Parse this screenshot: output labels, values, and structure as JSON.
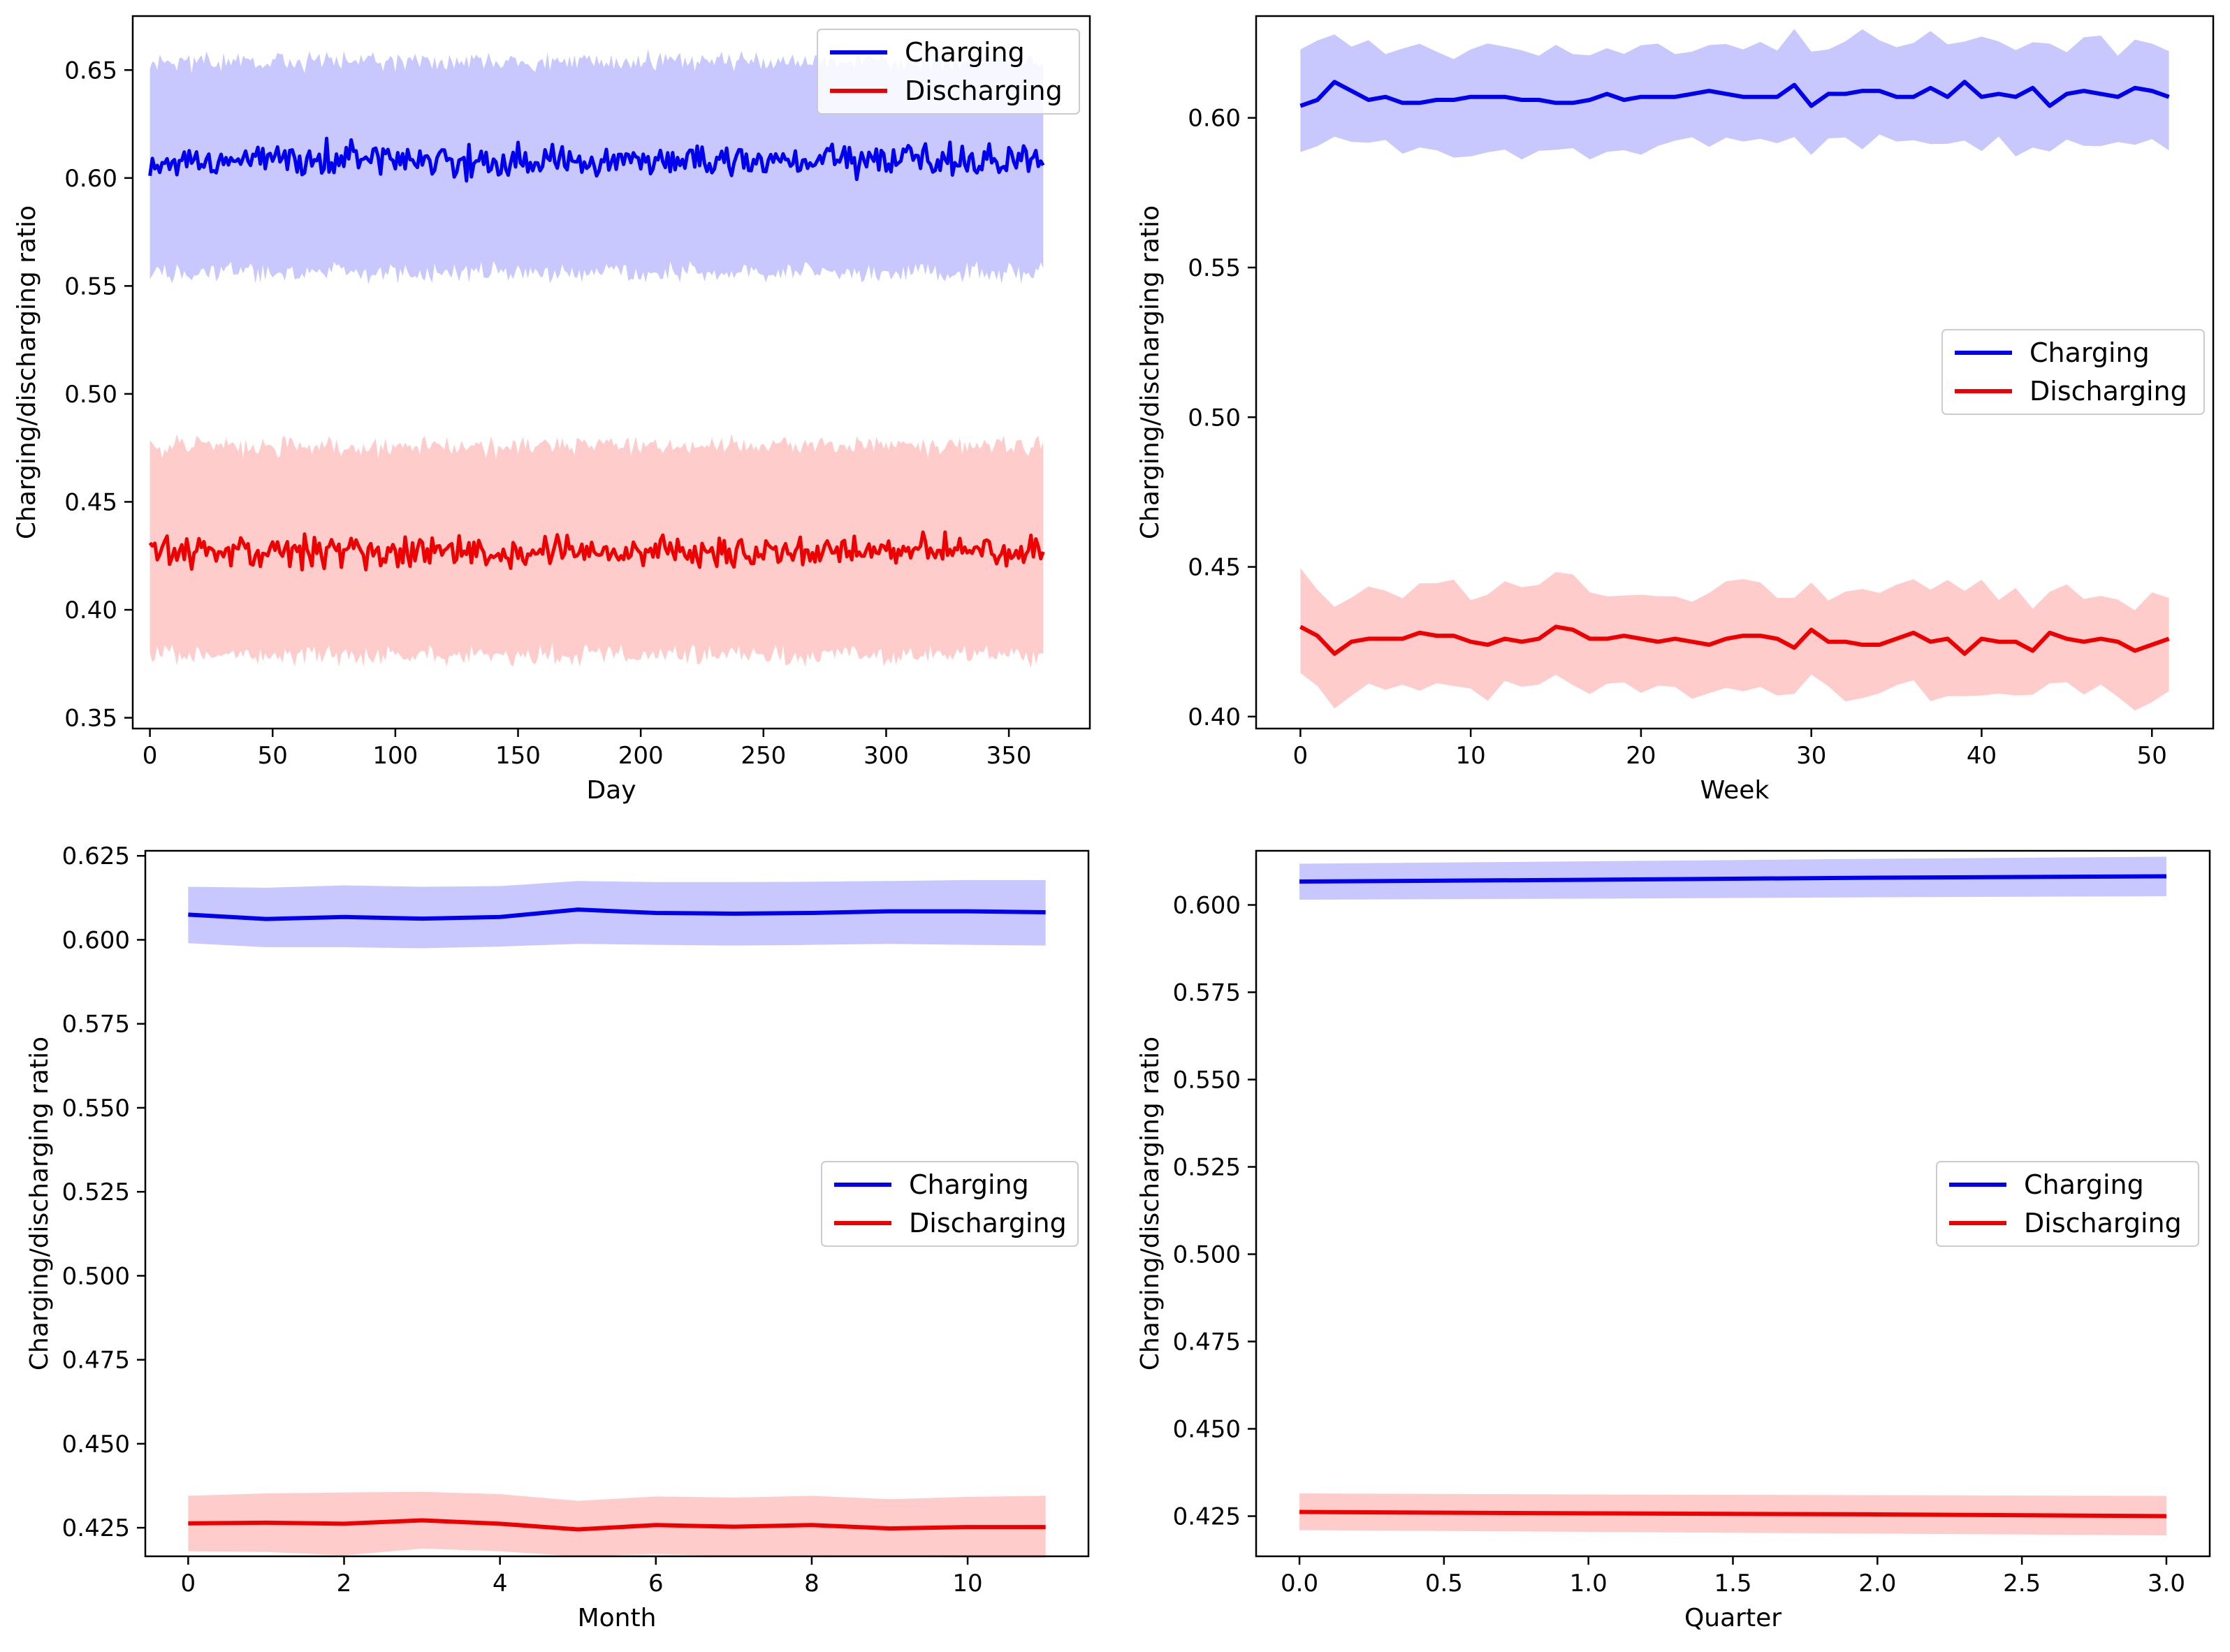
{
  "figure": {
    "ylabel": "Charging/discharging ratio"
  },
  "colors": {
    "charging": "#0000ee",
    "charging_band": "#c8c8ff",
    "discharging": "#ee0000",
    "discharging_band": "#ffcccc",
    "axis": "#000000"
  },
  "chart_data": [
    {
      "type": "line",
      "id": "daily",
      "x_count": 365,
      "x_step": 1,
      "xlabel": "Day",
      "ylabel": "Charging/discharging ratio",
      "xlim": [
        -7,
        383
      ],
      "ylim": [
        0.345,
        0.675
      ],
      "xticks": [
        0,
        50,
        100,
        150,
        200,
        250,
        300,
        350
      ],
      "xtick_labels": [
        "0",
        "50",
        "100",
        "150",
        "200",
        "250",
        "300",
        "350"
      ],
      "yticks": [
        0.35,
        0.4,
        0.45,
        0.5,
        0.55,
        0.6,
        0.65
      ],
      "ytick_labels": [
        "0.35",
        "0.40",
        "0.45",
        "0.50",
        "0.55",
        "0.60",
        "0.65"
      ],
      "legend": {
        "location": "upper right",
        "entries": [
          "Charging",
          "Discharging"
        ]
      },
      "series": [
        {
          "name": "Charging",
          "mean": 0.608,
          "jitter": 0.0045,
          "band_lower": 0.556,
          "band_upper": 0.654,
          "band_jitter": 0.006,
          "seed": 11,
          "start": 0.601
        },
        {
          "name": "Discharging",
          "mean": 0.427,
          "jitter": 0.0045,
          "band_lower": 0.379,
          "band_upper": 0.476,
          "band_jitter": 0.006,
          "seed": 29,
          "start": 0.431
        }
      ]
    },
    {
      "type": "line",
      "id": "weekly",
      "xlabel": "Week",
      "ylabel": "Charging/discharging ratio",
      "xlim": [
        -2.6,
        53.6
      ],
      "ylim": [
        0.396,
        0.634
      ],
      "xticks": [
        0,
        10,
        20,
        30,
        40,
        50
      ],
      "xtick_labels": [
        "0",
        "10",
        "20",
        "30",
        "40",
        "50"
      ],
      "yticks": [
        0.4,
        0.45,
        0.5,
        0.55,
        0.6
      ],
      "ytick_labels": [
        "0.40",
        "0.45",
        "0.50",
        "0.55",
        "0.60"
      ],
      "legend": {
        "location": "center right",
        "entries": [
          "Charging",
          "Discharging"
        ]
      },
      "series": [
        {
          "name": "Charging",
          "values": [
            0.604,
            0.606,
            0.612,
            0.609,
            0.606,
            0.607,
            0.605,
            0.605,
            0.606,
            0.606,
            0.607,
            0.607,
            0.607,
            0.606,
            0.606,
            0.605,
            0.605,
            0.606,
            0.608,
            0.606,
            0.607,
            0.607,
            0.607,
            0.608,
            0.609,
            0.608,
            0.607,
            0.607,
            0.607,
            0.611,
            0.604,
            0.608,
            0.608,
            0.609,
            0.609,
            0.607,
            0.607,
            0.61,
            0.607,
            0.612,
            0.607,
            0.608,
            0.607,
            0.61,
            0.604,
            0.608,
            0.609,
            0.608,
            0.607,
            0.61,
            0.609,
            0.607
          ],
          "band_offset": 0.017,
          "seed": 5
        },
        {
          "name": "Discharging",
          "values": [
            0.43,
            0.427,
            0.421,
            0.425,
            0.426,
            0.426,
            0.426,
            0.428,
            0.427,
            0.427,
            0.425,
            0.424,
            0.426,
            0.425,
            0.426,
            0.43,
            0.429,
            0.426,
            0.426,
            0.427,
            0.426,
            0.425,
            0.426,
            0.425,
            0.424,
            0.426,
            0.427,
            0.427,
            0.426,
            0.423,
            0.429,
            0.425,
            0.425,
            0.424,
            0.424,
            0.426,
            0.428,
            0.425,
            0.426,
            0.421,
            0.426,
            0.425,
            0.425,
            0.422,
            0.428,
            0.426,
            0.425,
            0.426,
            0.425,
            0.422,
            0.424,
            0.426
          ],
          "band_offset": 0.017,
          "seed": 17
        }
      ]
    },
    {
      "type": "line",
      "id": "monthly",
      "xlabel": "Month",
      "ylabel": "Charging/discharging ratio",
      "xlim": [
        -0.55,
        11.55
      ],
      "ylim": [
        0.4165,
        0.6265
      ],
      "xticks": [
        0,
        2,
        4,
        6,
        8,
        10
      ],
      "xtick_labels": [
        "0",
        "2",
        "4",
        "6",
        "8",
        "10"
      ],
      "yticks": [
        0.425,
        0.45,
        0.475,
        0.5,
        0.525,
        0.55,
        0.575,
        0.6,
        0.625
      ],
      "ytick_labels": [
        "0.425",
        "0.450",
        "0.475",
        "0.500",
        "0.525",
        "0.550",
        "0.575",
        "0.600",
        "0.625"
      ],
      "legend": {
        "location": "center right",
        "entries": [
          "Charging",
          "Discharging"
        ]
      },
      "series": [
        {
          "name": "Charging",
          "values": [
            0.6075,
            0.6062,
            0.6068,
            0.6063,
            0.6068,
            0.609,
            0.608,
            0.6078,
            0.608,
            0.6085,
            0.6085,
            0.6082
          ],
          "lower": [
            0.599,
            0.5978,
            0.5978,
            0.5975,
            0.598,
            0.5988,
            0.5985,
            0.5983,
            0.5985,
            0.5988,
            0.5985,
            0.5983
          ],
          "upper": [
            0.6158,
            0.6155,
            0.6162,
            0.6158,
            0.616,
            0.6175,
            0.6172,
            0.6172,
            0.6173,
            0.6175,
            0.6178,
            0.6178
          ]
        },
        {
          "name": "Discharging",
          "values": [
            0.4263,
            0.4265,
            0.4262,
            0.4272,
            0.4262,
            0.4245,
            0.4258,
            0.4253,
            0.4258,
            0.4248,
            0.4252,
            0.4252
          ],
          "lower": [
            0.418,
            0.4178,
            0.4168,
            0.4188,
            0.418,
            0.4165,
            0.4172,
            0.4165,
            0.4168,
            0.4165,
            0.416,
            0.416
          ],
          "upper": [
            0.4345,
            0.4352,
            0.4355,
            0.4357,
            0.435,
            0.433,
            0.4343,
            0.434,
            0.4345,
            0.4335,
            0.4342,
            0.4345
          ]
        }
      ]
    },
    {
      "type": "line",
      "id": "quarterly",
      "xlabel": "Quarter",
      "ylabel": "Charging/discharging ratio",
      "xlim": [
        -0.15,
        3.15
      ],
      "ylim": [
        0.4135,
        0.6155
      ],
      "xticks": [
        0.0,
        0.5,
        1.0,
        1.5,
        2.0,
        2.5,
        3.0
      ],
      "xtick_labels": [
        "0.0",
        "0.5",
        "1.0",
        "1.5",
        "2.0",
        "2.5",
        "3.0"
      ],
      "yticks": [
        0.425,
        0.45,
        0.475,
        0.5,
        0.525,
        0.55,
        0.575,
        0.6
      ],
      "ytick_labels": [
        "0.425",
        "0.450",
        "0.475",
        "0.500",
        "0.525",
        "0.550",
        "0.575",
        "0.600"
      ],
      "legend": {
        "location": "center right",
        "entries": [
          "Charging",
          "Discharging"
        ]
      },
      "series": [
        {
          "name": "Charging",
          "x": [
            0,
            1,
            2,
            3
          ],
          "values": [
            0.6067,
            0.6072,
            0.6078,
            0.6082
          ],
          "lower": [
            0.6015,
            0.6018,
            0.6022,
            0.6025
          ],
          "upper": [
            0.6118,
            0.6125,
            0.6132,
            0.6138
          ]
        },
        {
          "name": "Discharging",
          "x": [
            0,
            1,
            2,
            3
          ],
          "values": [
            0.4262,
            0.4258,
            0.4255,
            0.425
          ],
          "lower": [
            0.421,
            0.4205,
            0.42,
            0.4195
          ],
          "upper": [
            0.4315,
            0.4312,
            0.431,
            0.4308
          ]
        }
      ]
    }
  ]
}
